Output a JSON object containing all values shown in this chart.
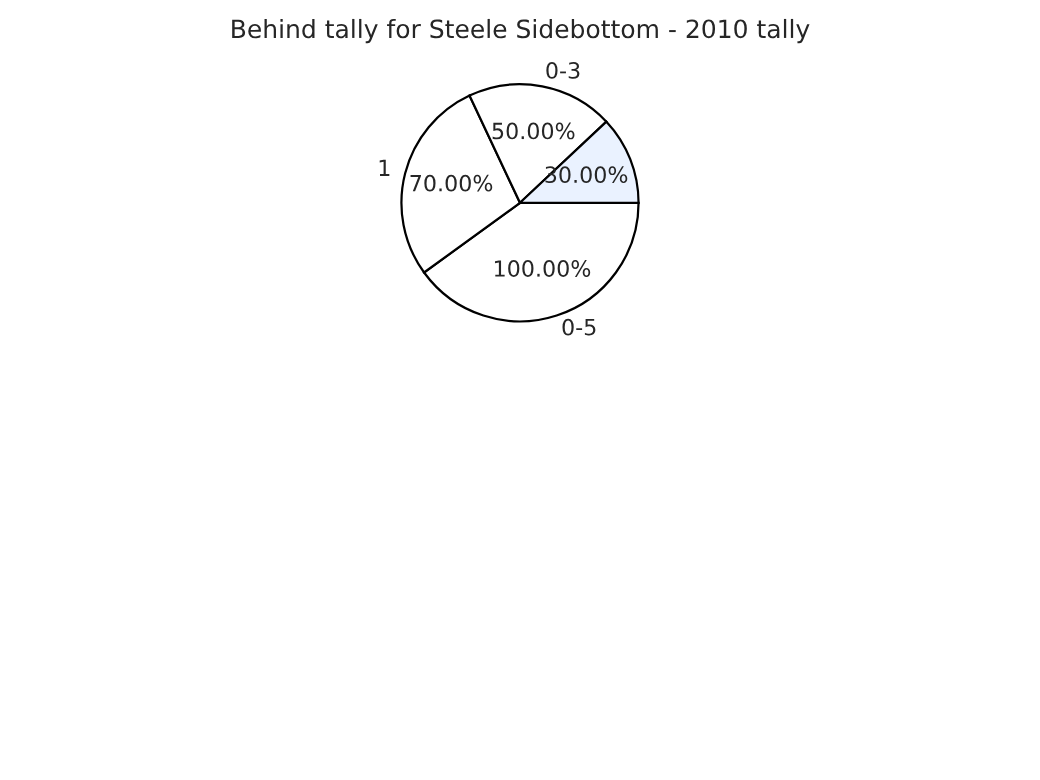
{
  "chart_data": {
    "type": "pie",
    "title": "Behind tally for Steele Sidebottom - 2010 tally",
    "categories": [
      "0-5",
      "1",
      "0-3",
      null
    ],
    "values": [
      100,
      70,
      50,
      30
    ],
    "value_labels": [
      "100.00%",
      "70.00%",
      "50.00%",
      "30.00%"
    ],
    "colors": [
      "#ffffff",
      "#ffffff",
      "#ffffff",
      "#eaf2ff"
    ]
  }
}
